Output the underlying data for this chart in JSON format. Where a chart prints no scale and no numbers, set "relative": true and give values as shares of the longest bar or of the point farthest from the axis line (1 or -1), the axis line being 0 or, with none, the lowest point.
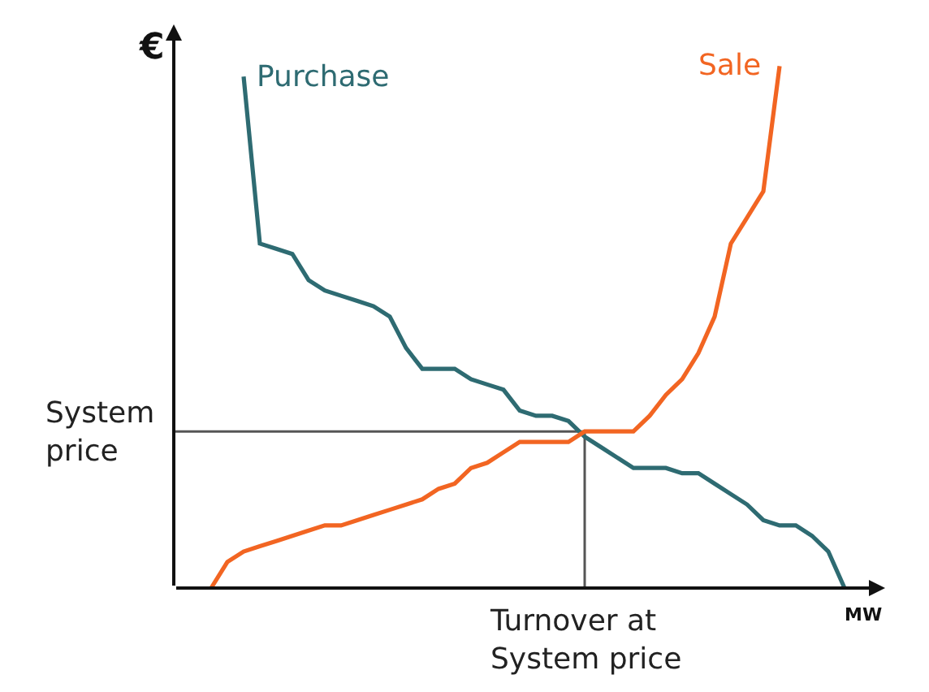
{
  "chart_data": {
    "type": "line",
    "relative": true,
    "ylabel": "€",
    "xlabel": "MW",
    "categories": [
      null,
      null,
      null,
      null,
      null,
      null,
      null,
      null,
      null,
      null,
      null,
      null,
      null,
      null,
      null,
      null,
      null,
      null,
      null,
      null,
      null,
      null,
      null,
      null,
      null,
      null,
      null,
      null,
      null,
      null,
      null,
      null,
      null,
      null,
      null,
      null,
      null,
      null,
      null,
      null
    ],
    "series": [
      {
        "name": "Purchase",
        "color": "#2e6b72",
        "values": [
          null,
          null,
          0.98,
          0.66,
          0.65,
          0.64,
          0.59,
          0.57,
          0.56,
          0.55,
          0.54,
          0.52,
          0.46,
          0.42,
          0.42,
          0.42,
          0.4,
          0.39,
          0.38,
          0.34,
          0.33,
          0.33,
          0.32,
          0.29,
          0.27,
          0.25,
          0.23,
          0.23,
          0.23,
          0.22,
          0.22,
          0.2,
          0.18,
          0.16,
          0.13,
          0.12,
          0.12,
          0.1,
          0.07,
          0
        ]
      },
      {
        "name": "Sale",
        "color": "#f26522",
        "values": [
          0,
          0.05,
          0.07,
          0.08,
          0.09,
          0.1,
          0.11,
          0.12,
          0.12,
          0.13,
          0.14,
          0.15,
          0.16,
          0.17,
          0.19,
          0.2,
          0.23,
          0.24,
          0.26,
          0.28,
          0.28,
          0.28,
          0.28,
          0.3,
          0.3,
          0.3,
          0.3,
          0.33,
          0.37,
          0.4,
          0.45,
          0.52,
          0.66,
          0.71,
          0.76,
          1.0,
          null,
          null,
          null,
          null
        ]
      }
    ],
    "ref_lines": [
      {
        "axis": "y",
        "value": 0.3,
        "label": "System\nprice",
        "color": "#555555"
      }
    ],
    "annotations": [
      "Turnover at\nSystem price"
    ],
    "legend": false,
    "grid": false,
    "marker": "none",
    "line_style": "solid"
  }
}
